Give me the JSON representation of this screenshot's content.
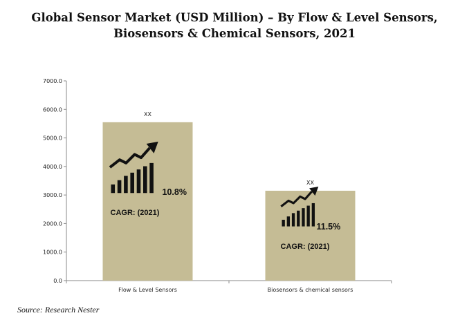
{
  "title_lines": [
    "Global Sensor Market (USD Million) – By Flow & Level Sensors,",
    "Biosensors & Chemical Sensors, 2021"
  ],
  "source": "Source: Research Nester",
  "chart_data": {
    "type": "bar",
    "title": "Global Sensor Market (USD Million) – By Flow & Level Sensors, Biosensors & Chemical Sensors, 2021",
    "categories": [
      "Flow & Level Sensors",
      "Biosensors & chemical sensors"
    ],
    "values": [
      5550,
      3150
    ],
    "data_labels": [
      "XX",
      "XX"
    ],
    "ylim": [
      0,
      7000
    ],
    "yticks": [
      "0.0",
      "1000.0",
      "2000.0",
      "3000.0",
      "4000.0",
      "5000.0",
      "6000.0",
      "7000.0"
    ],
    "annotations": [
      {
        "category": "Flow & Level Sensors",
        "cagr": "10.8%",
        "label": "CAGR: (2021)",
        "icon": "growth-chart-icon"
      },
      {
        "category": "Biosensors & chemical sensors",
        "cagr": "11.5%",
        "label": "CAGR: (2021)",
        "icon": "growth-chart-icon"
      }
    ],
    "bar_color": "#c5bc95",
    "grid": false
  }
}
